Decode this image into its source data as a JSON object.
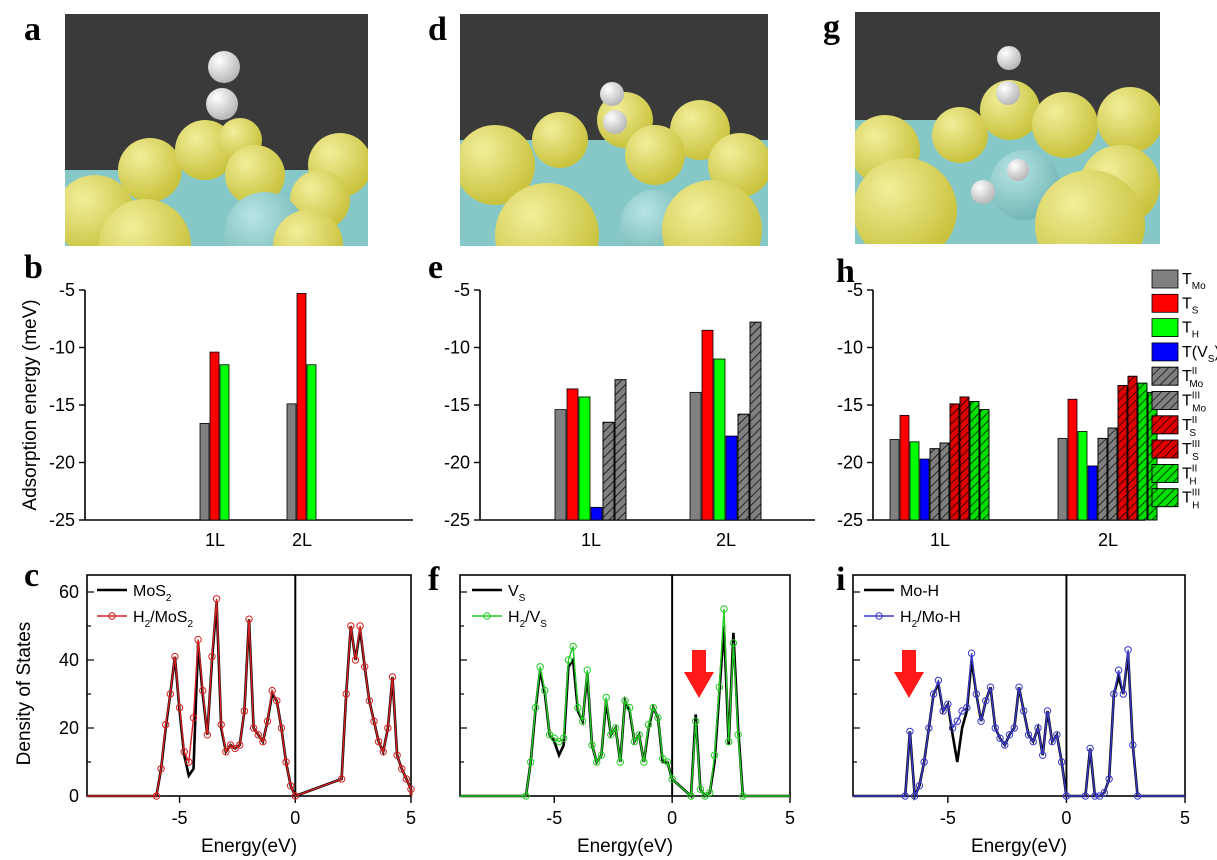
{
  "panels": {
    "a": "a",
    "b": "b",
    "c": "c",
    "d": "d",
    "e": "e",
    "f": "f",
    "g": "g",
    "h": "h",
    "i": "i"
  },
  "scene_colors": {
    "background": "#3a3a3a",
    "sulfur": "#d8d25a",
    "molybdenum": "#86c8c8",
    "hydrogen": "#d8d8d8"
  },
  "bar_legend": [
    {
      "base": "T",
      "sub": "Mo",
      "sup": "",
      "color": "#808080",
      "hatch": false
    },
    {
      "base": "T",
      "sub": "S",
      "sup": "",
      "color": "#ff0000",
      "hatch": false
    },
    {
      "base": "T",
      "sub": "H",
      "sup": "",
      "color": "#00ff00",
      "hatch": false
    },
    {
      "base": "T(V",
      "sub": "S",
      "sup": "",
      "tail": ")",
      "color": "#0000ff",
      "hatch": false
    },
    {
      "base": "T",
      "sub": "Mo",
      "sup": "II",
      "color": "#808080",
      "hatch": true
    },
    {
      "base": "T",
      "sub": "Mo",
      "sup": "III",
      "color": "#808080",
      "hatch": true
    },
    {
      "base": "T",
      "sub": "S",
      "sup": "II",
      "color": "#e00000",
      "hatch": true
    },
    {
      "base": "T",
      "sub": "S",
      "sup": "III",
      "color": "#e00000",
      "hatch": true
    },
    {
      "base": "T",
      "sub": "H",
      "sup": "II",
      "color": "#00e000",
      "hatch": true
    },
    {
      "base": "T",
      "sub": "H",
      "sup": "III",
      "color": "#00e000",
      "hatch": true
    }
  ],
  "chart_data": [
    {
      "panel": "b",
      "type": "bar",
      "ylabel": "Adsorption energy (meV)",
      "ylim": [
        -25,
        -5
      ],
      "yticks": [
        "-5",
        "-10",
        "-15",
        "-20",
        "-25"
      ],
      "categories": [
        "1L",
        "2L"
      ],
      "series": [
        {
          "name": "T_Mo",
          "values": [
            -16.6,
            -14.9
          ]
        },
        {
          "name": "T_S",
          "values": [
            -10.4,
            -5.3
          ]
        },
        {
          "name": "T_H",
          "values": [
            -11.5,
            -11.5
          ]
        }
      ]
    },
    {
      "panel": "e",
      "type": "bar",
      "ylim": [
        -25,
        -5
      ],
      "yticks": [
        "-5",
        "-10",
        "-15",
        "-20",
        "-25"
      ],
      "categories": [
        "1L",
        "2L"
      ],
      "series": [
        {
          "name": "T_Mo",
          "values": [
            -15.4,
            -13.9
          ]
        },
        {
          "name": "T_S",
          "values": [
            -13.6,
            -8.5
          ]
        },
        {
          "name": "T_H",
          "values": [
            -14.3,
            -11.0
          ]
        },
        {
          "name": "T(V_S)",
          "values": [
            -23.9,
            -17.7
          ]
        },
        {
          "name": "T_Mo^II",
          "values": [
            -16.5,
            -15.8
          ]
        },
        {
          "name": "T_Mo^III",
          "values": [
            -12.8,
            -7.8
          ]
        }
      ]
    },
    {
      "panel": "h",
      "type": "bar",
      "ylim": [
        -25,
        -5
      ],
      "yticks": [
        "-5",
        "-10",
        "-15",
        "-20",
        "-25"
      ],
      "categories": [
        "1L",
        "2L"
      ],
      "series": [
        {
          "name": "T_Mo",
          "values": [
            -18.0,
            -17.9
          ]
        },
        {
          "name": "T_S",
          "values": [
            -15.9,
            -14.5
          ]
        },
        {
          "name": "T_H",
          "values": [
            -18.2,
            -17.3
          ]
        },
        {
          "name": "T(V_S)",
          "values": [
            -19.7,
            -20.3
          ]
        },
        {
          "name": "T_Mo^II",
          "values": [
            -18.8,
            -17.9
          ]
        },
        {
          "name": "T_Mo^III",
          "values": [
            -18.3,
            -17.0
          ]
        },
        {
          "name": "T_S^II",
          "values": [
            -14.9,
            -13.3
          ]
        },
        {
          "name": "T_S^III",
          "values": [
            -14.3,
            -12.5
          ]
        },
        {
          "name": "T_H^II",
          "values": [
            -14.7,
            -13.1
          ]
        },
        {
          "name": "T_H^III",
          "values": [
            -15.4,
            -13.9
          ]
        }
      ]
    },
    {
      "panel": "c",
      "type": "line",
      "xlabel": "Energy(eV)",
      "ylabel": "Density of States",
      "xlim": [
        -9,
        5
      ],
      "ylim": [
        0,
        65
      ],
      "xticks": [
        "-5",
        "0",
        "5"
      ],
      "yticks": [
        "0",
        "20",
        "40",
        "60"
      ],
      "fermi_level": 0,
      "series": [
        {
          "name": "MoS2",
          "color": "#000000",
          "marker": "none",
          "x": [
            -6.0,
            -5.8,
            -5.6,
            -5.4,
            -5.2,
            -5.0,
            -4.8,
            -4.6,
            -4.4,
            -4.2,
            -4.0,
            -3.8,
            -3.6,
            -3.4,
            -3.2,
            -3.0,
            -2.8,
            -2.6,
            -2.4,
            -2.2,
            -2.0,
            -1.8,
            -1.6,
            -1.4,
            -1.2,
            -1.0,
            -0.8,
            -0.6,
            -0.4,
            -0.2,
            0.0,
            2.0,
            2.2,
            2.4,
            2.6,
            2.8,
            3.0,
            3.2,
            3.4,
            3.6,
            3.8,
            4.0,
            4.2,
            4.4,
            4.6,
            4.8,
            5.0
          ],
          "y": [
            0,
            8,
            20,
            30,
            41,
            25,
            12,
            6,
            8,
            45,
            30,
            18,
            40,
            57,
            20,
            13,
            15,
            14,
            15,
            25,
            52,
            20,
            18,
            16,
            22,
            30,
            28,
            20,
            10,
            3,
            0,
            5,
            30,
            50,
            40,
            49,
            38,
            28,
            22,
            16,
            13,
            20,
            35,
            12,
            8,
            5,
            2
          ]
        },
        {
          "name": "H2/MoS2",
          "color": "#d62020",
          "marker": "circle",
          "x": [
            -6.0,
            -5.8,
            -5.6,
            -5.4,
            -5.2,
            -5.0,
            -4.8,
            -4.6,
            -4.4,
            -4.2,
            -4.0,
            -3.8,
            -3.6,
            -3.4,
            -3.2,
            -3.0,
            -2.8,
            -2.6,
            -2.4,
            -2.2,
            -2.0,
            -1.8,
            -1.6,
            -1.4,
            -1.2,
            -1.0,
            -0.8,
            -0.6,
            -0.4,
            -0.2,
            0.0,
            2.0,
            2.2,
            2.4,
            2.6,
            2.8,
            3.0,
            3.2,
            3.4,
            3.6,
            3.8,
            4.0,
            4.2,
            4.4,
            4.6,
            4.8,
            5.0
          ],
          "y": [
            0,
            8,
            21,
            30,
            41,
            26,
            13,
            10,
            23,
            46,
            31,
            18,
            41,
            58,
            21,
            13,
            15,
            14,
            15,
            25,
            52,
            20,
            18,
            16,
            22,
            31,
            28,
            20,
            10,
            3,
            0,
            5,
            30,
            50,
            40,
            50,
            38,
            28,
            22,
            16,
            13,
            20,
            35,
            12,
            8,
            5,
            2
          ]
        }
      ]
    },
    {
      "panel": "f",
      "type": "line",
      "xlabel": "Energy(eV)",
      "xlim": [
        -9,
        5
      ],
      "ylim": [
        0,
        65
      ],
      "xticks": [
        "-5",
        "0",
        "5"
      ],
      "fermi_level": 0,
      "series": [
        {
          "name": "V_S",
          "color": "#000000",
          "marker": "none",
          "x": [
            -6.2,
            -6.0,
            -5.8,
            -5.6,
            -5.4,
            -5.2,
            -5.0,
            -4.8,
            -4.6,
            -4.4,
            -4.2,
            -4.0,
            -3.8,
            -3.6,
            -3.4,
            -3.2,
            -3.0,
            -2.8,
            -2.6,
            -2.4,
            -2.2,
            -2.0,
            -1.8,
            -1.6,
            -1.4,
            -1.2,
            -1.0,
            -0.8,
            -0.6,
            -0.4,
            -0.2,
            0.0,
            0.8,
            1.0,
            1.2,
            1.4,
            1.6,
            1.8,
            2.0,
            2.2,
            2.4,
            2.6,
            2.8,
            3.0
          ],
          "y": [
            0,
            10,
            25,
            37,
            30,
            18,
            16,
            12,
            15,
            38,
            40,
            25,
            22,
            36,
            15,
            10,
            12,
            28,
            18,
            20,
            10,
            28,
            25,
            16,
            18,
            10,
            20,
            26,
            23,
            10,
            10,
            5,
            0,
            24,
            2,
            0,
            1,
            10,
            30,
            50,
            15,
            48,
            20,
            0
          ]
        },
        {
          "name": "H2/V_S",
          "color": "#22cc22",
          "marker": "circle",
          "x": [
            -6.2,
            -6.0,
            -5.8,
            -5.6,
            -5.4,
            -5.2,
            -5.0,
            -4.8,
            -4.6,
            -4.4,
            -4.2,
            -4.0,
            -3.8,
            -3.6,
            -3.4,
            -3.2,
            -3.0,
            -2.8,
            -2.6,
            -2.4,
            -2.2,
            -2.0,
            -1.8,
            -1.6,
            -1.4,
            -1.2,
            -1.0,
            -0.8,
            -0.6,
            -0.4,
            -0.2,
            0.0,
            0.8,
            1.0,
            1.2,
            1.4,
            1.6,
            1.8,
            2.0,
            2.2,
            2.4,
            2.6,
            2.8,
            3.0
          ],
          "y": [
            0,
            10,
            26,
            38,
            31,
            18,
            17,
            16,
            17,
            40,
            44,
            26,
            22,
            37,
            15,
            10,
            12,
            29,
            18,
            20,
            10,
            28,
            26,
            16,
            18,
            10,
            21,
            26,
            23,
            11,
            10,
            5,
            0,
            22,
            2,
            0,
            1,
            12,
            32,
            55,
            16,
            45,
            18,
            0
          ]
        }
      ]
    },
    {
      "panel": "i",
      "type": "line",
      "xlabel": "Energy(eV)",
      "xlim": [
        -9,
        5
      ],
      "ylim": [
        0,
        65
      ],
      "xticks": [
        "-5",
        "0",
        "5"
      ],
      "fermi_level": 0,
      "series": [
        {
          "name": "Mo-H",
          "color": "#000000",
          "marker": "none",
          "x": [
            -6.8,
            -6.6,
            -6.4,
            -6.2,
            -6.0,
            -5.8,
            -5.6,
            -5.4,
            -5.2,
            -5.0,
            -4.8,
            -4.6,
            -4.4,
            -4.2,
            -4.0,
            -3.8,
            -3.6,
            -3.4,
            -3.2,
            -3.0,
            -2.8,
            -2.6,
            -2.4,
            -2.2,
            -2.0,
            -1.8,
            -1.6,
            -1.4,
            -1.2,
            -1.0,
            -0.8,
            -0.6,
            -0.4,
            -0.2,
            0.0,
            0.8,
            1.0,
            1.2,
            1.4,
            1.6,
            1.8,
            2.0,
            2.2,
            2.4,
            2.6,
            2.8,
            3.0
          ],
          "y": [
            0,
            19,
            0,
            3,
            10,
            20,
            30,
            33,
            25,
            27,
            18,
            10,
            20,
            25,
            40,
            30,
            22,
            28,
            32,
            20,
            17,
            15,
            18,
            20,
            32,
            25,
            18,
            16,
            20,
            12,
            25,
            16,
            18,
            10,
            0,
            0,
            14,
            0,
            0,
            1,
            5,
            30,
            35,
            30,
            42,
            15,
            0
          ]
        },
        {
          "name": "H2/Mo-H",
          "color": "#3a3ac8",
          "marker": "circle",
          "x": [
            -6.8,
            -6.6,
            -6.4,
            -6.2,
            -6.0,
            -5.8,
            -5.6,
            -5.4,
            -5.2,
            -5.0,
            -4.8,
            -4.6,
            -4.4,
            -4.2,
            -4.0,
            -3.8,
            -3.6,
            -3.4,
            -3.2,
            -3.0,
            -2.8,
            -2.6,
            -2.4,
            -2.2,
            -2.0,
            -1.8,
            -1.6,
            -1.4,
            -1.2,
            -1.0,
            -0.8,
            -0.6,
            -0.4,
            -0.2,
            0.0,
            0.8,
            1.0,
            1.2,
            1.4,
            1.6,
            1.8,
            2.0,
            2.2,
            2.4,
            2.6,
            2.8,
            3.0
          ],
          "y": [
            0,
            19,
            0,
            3,
            10,
            20,
            30,
            34,
            25,
            27,
            20,
            22,
            25,
            26,
            42,
            30,
            22,
            28,
            32,
            20,
            17,
            15,
            18,
            20,
            32,
            25,
            18,
            16,
            20,
            12,
            25,
            16,
            18,
            10,
            0,
            0,
            14,
            0,
            0,
            1,
            5,
            30,
            37,
            30,
            43,
            15,
            0
          ]
        }
      ]
    }
  ]
}
